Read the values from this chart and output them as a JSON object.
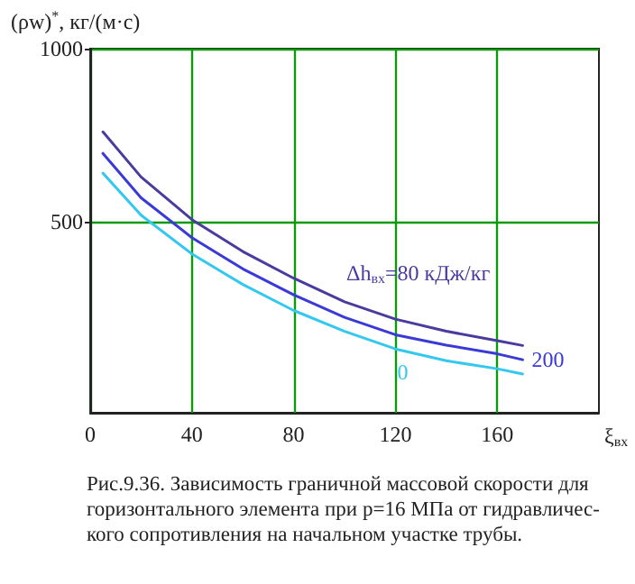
{
  "chart_data": {
    "type": "line",
    "ylabel": "(ρw)$^{*}$, кг/(м·с)",
    "xlabel": "ξ$_{вх}$",
    "x": [
      5,
      20,
      40,
      60,
      80,
      100,
      120,
      140,
      160,
      170
    ],
    "series": [
      {
        "name": "Δh$_{вх}$=80 кДж/кг",
        "color": "#4a3c9e",
        "values": [
          760,
          630,
          507,
          415,
          338,
          270,
          220,
          185,
          158,
          144
        ]
      },
      {
        "name": "200",
        "color": "#3a3ad6",
        "values": [
          698,
          570,
          455,
          365,
          290,
          225,
          175,
          145,
          120,
          103
        ]
      },
      {
        "name": "0",
        "color": "#35c8ee",
        "values": [
          641,
          520,
          408,
          320,
          245,
          185,
          134,
          100,
          77,
          62
        ]
      }
    ],
    "xlim": [
      0,
      200
    ],
    "xticks": [
      0,
      40,
      80,
      120,
      160
    ],
    "ylim": [
      -50,
      1000
    ],
    "yticks": [
      500,
      1000
    ],
    "grid": true,
    "line_style": "solid",
    "annotations": [
      "Рис.9.36. Зависимость граничной массовой скорости для горизонтального элемента при p=16 МПа от гидравличес-кого сопротивления на начальном участке трубы."
    ]
  }
}
